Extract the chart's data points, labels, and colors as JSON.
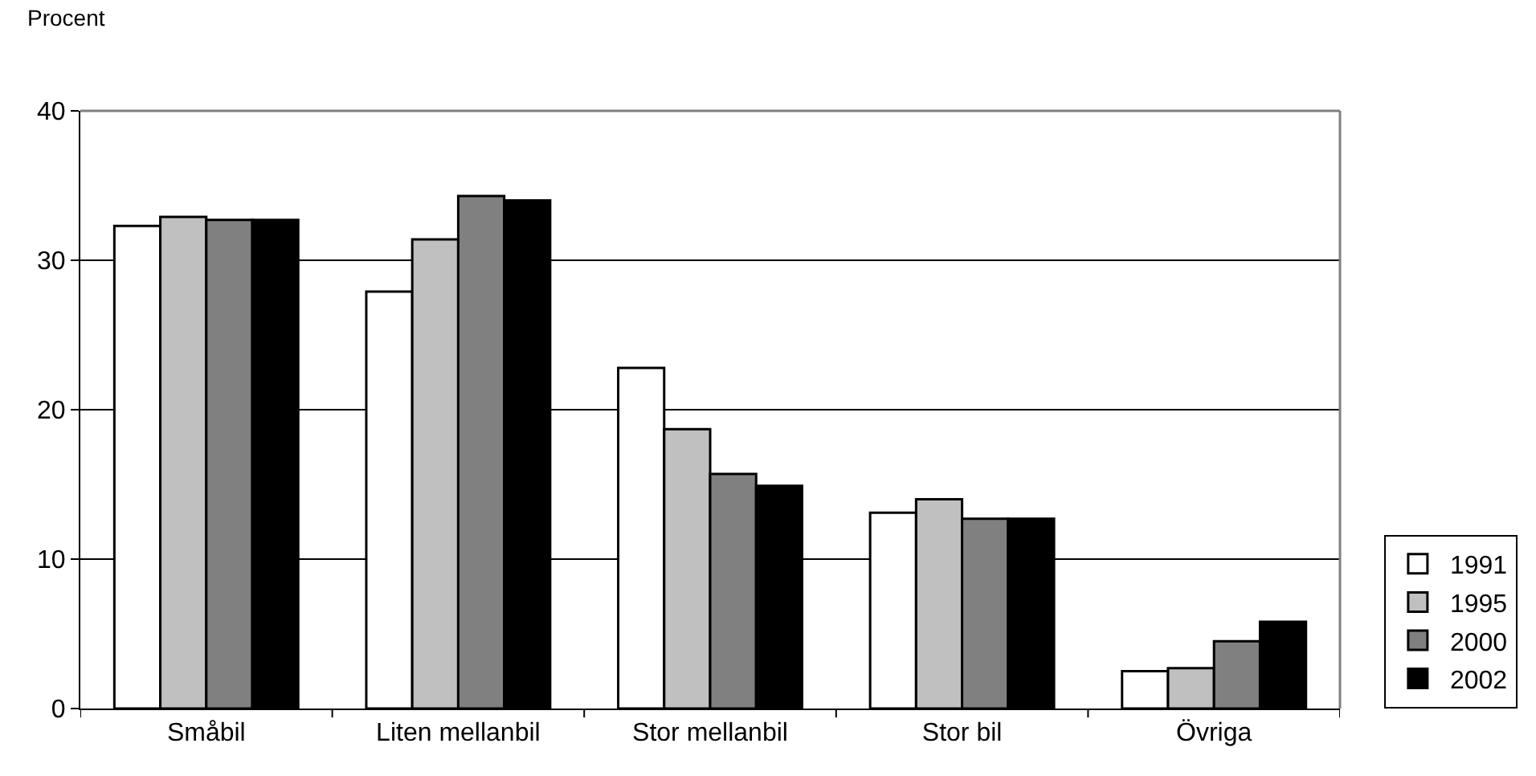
{
  "chart_data": {
    "type": "bar",
    "ylabel": "Procent",
    "categories": [
      "Småbil",
      "Liten mellanbil",
      "Stor mellanbil",
      "Stor bil",
      "Övriga"
    ],
    "series": [
      {
        "name": "1991",
        "color": "#ffffff",
        "values": [
          32.3,
          27.9,
          22.8,
          13.1,
          2.5
        ]
      },
      {
        "name": "1995",
        "color": "#c0c0c0",
        "values": [
          32.9,
          31.4,
          18.7,
          14.0,
          2.7
        ]
      },
      {
        "name": "2000",
        "color": "#808080",
        "values": [
          32.7,
          34.3,
          15.7,
          12.7,
          4.5
        ]
      },
      {
        "name": "2002",
        "color": "#000000",
        "values": [
          32.7,
          34.0,
          14.9,
          12.7,
          5.8
        ]
      }
    ],
    "ylim": [
      0,
      40
    ],
    "yticks": [
      0,
      10,
      20,
      30,
      40
    ],
    "grid": "y",
    "legend": "right"
  }
}
